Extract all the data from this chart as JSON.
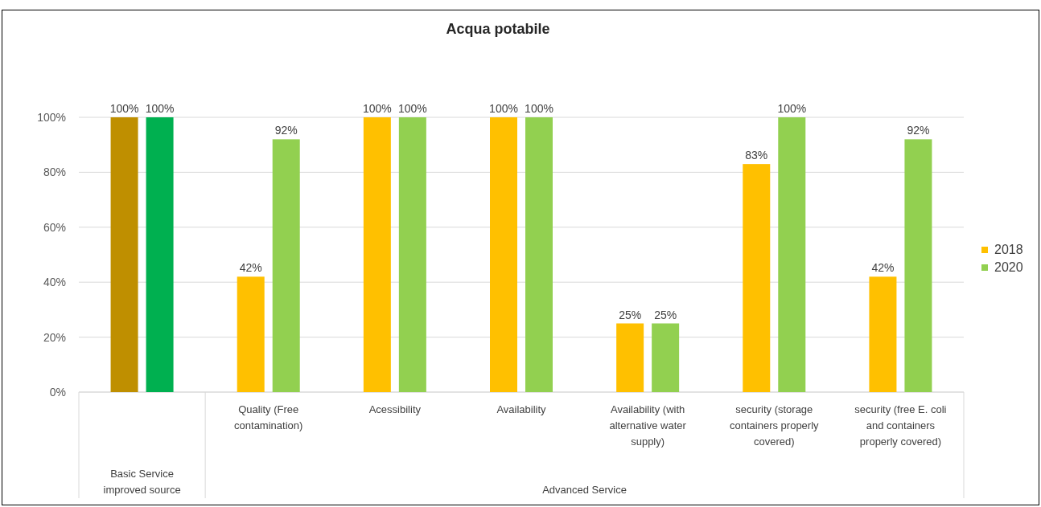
{
  "chart_data": {
    "type": "bar",
    "title": "Acqua potabile",
    "categories": [
      null,
      "Quality (Free contamination)",
      "Acessibility",
      "Availability",
      "Availability (with alternative water supply)",
      "security (storage containers properly covered)",
      "security (free E. coli and containers properly covered)"
    ],
    "series": [
      {
        "name": "2018",
        "color": "#ffc000",
        "colors": [
          "#bf8f00",
          "#ffc000",
          "#ffc000",
          "#ffc000",
          "#ffc000",
          "#ffc000",
          "#ffc000"
        ],
        "values": [
          100,
          42,
          100,
          100,
          25,
          83,
          42
        ],
        "value_labels": [
          "100%",
          "42%",
          "100%",
          "100%",
          "25%",
          "83%",
          "42%"
        ]
      },
      {
        "name": "2020",
        "color": "#92d050",
        "colors": [
          "#00b050",
          "#92d050",
          "#92d050",
          "#92d050",
          "#92d050",
          "#92d050",
          "#92d050"
        ],
        "values": [
          100,
          92,
          100,
          100,
          25,
          100,
          92
        ],
        "value_labels": [
          "100%",
          "92%",
          "100%",
          "100%",
          "25%",
          "100%",
          "92%"
        ]
      }
    ],
    "ylim": [
      0,
      100
    ],
    "yticks": [
      {
        "value": 0,
        "label": "0%"
      },
      {
        "value": 20,
        "label": "20%"
      },
      {
        "value": 40,
        "label": "40%"
      },
      {
        "value": 60,
        "label": "60%"
      },
      {
        "value": 80,
        "label": "80%"
      },
      {
        "value": 100,
        "label": "100%"
      }
    ],
    "grid": "y",
    "legend": "right",
    "annotations": [
      "Basic Service improved source",
      "Advanced Service"
    ]
  }
}
